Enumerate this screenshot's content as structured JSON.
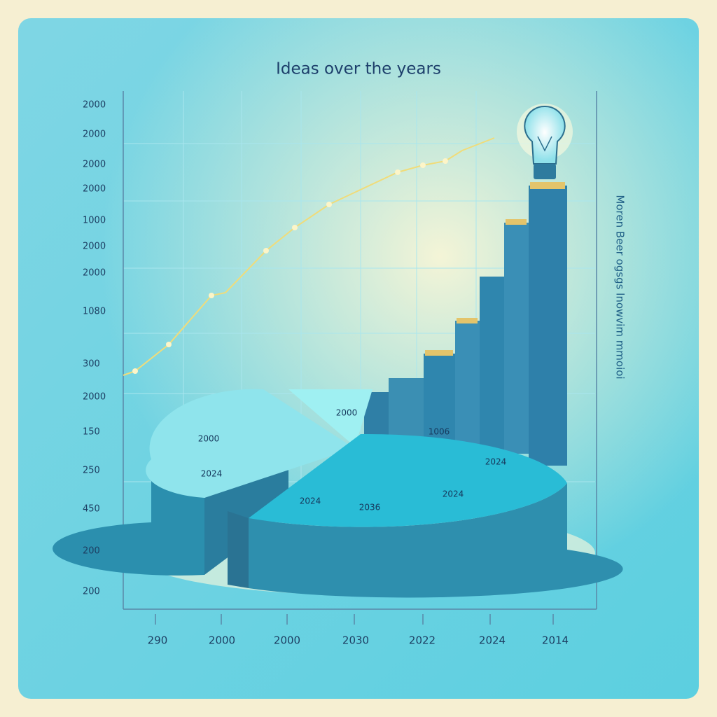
{
  "header": {
    "title": "Ideas over the years"
  },
  "y_labels": [
    "2000",
    "2000",
    "2000",
    "2000",
    "1000",
    "2000",
    "2000",
    "1080",
    "300",
    "2000",
    "150",
    "250",
    "450",
    "200",
    "200"
  ],
  "x_labels": [
    "290",
    "2000",
    "2000",
    "2030",
    "2022",
    "2024",
    "2014"
  ],
  "pie_labels": [
    "2000",
    "2000",
    "2024",
    "1006",
    "2024",
    "2024",
    "2036",
    "2024"
  ],
  "side_text": "Moren Beer ogsgs lnowvim mmoioi"
}
